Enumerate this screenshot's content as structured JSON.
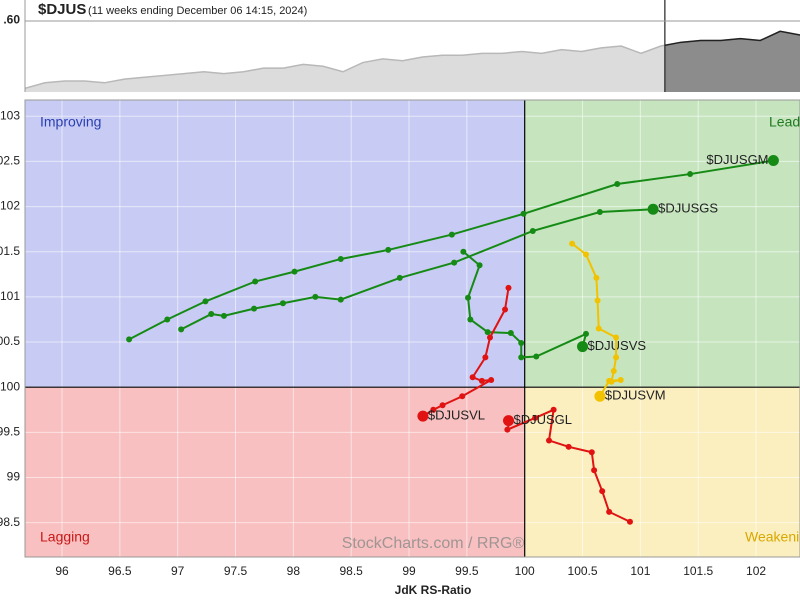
{
  "chart_data": [
    {
      "type": "rrg",
      "xlabel": "JdK RS-Ratio",
      "watermark": "StockCharts.com / RRG®",
      "xlim": [
        95.68,
        102.38
      ],
      "ylim": [
        98.12,
        103.18
      ],
      "xticks": [
        96,
        96.5,
        97,
        97.5,
        98,
        98.5,
        99,
        99.5,
        100,
        100.5,
        101,
        101.5,
        102
      ],
      "yticks": [
        98.5,
        99,
        99.5,
        100,
        100.5,
        101,
        101.5,
        102,
        102.5,
        103
      ],
      "center": [
        100,
        100
      ],
      "grid": true,
      "quadrants": [
        {
          "name": "Improving",
          "color": "#c8ccf4",
          "text_color": "#2b3fb0"
        },
        {
          "name": "Leading",
          "color": "#c6e5bf",
          "text_color": "#1f7a1f"
        },
        {
          "name": "Lagging",
          "color": "#f8c0c0",
          "text_color": "#c81818"
        },
        {
          "name": "Weakening",
          "color": "#fbefc0",
          "text_color": "#d8a800"
        }
      ],
      "series": [
        {
          "name": "$DJUSGM",
          "color": "#158a15",
          "x": [
            96.58,
            96.91,
            97.24,
            97.67,
            98.01,
            98.41,
            98.82,
            99.37,
            99.99,
            100.8,
            101.43,
            102.15
          ],
          "values": [
            100.53,
            100.75,
            100.95,
            101.17,
            101.28,
            101.42,
            101.52,
            101.69,
            101.92,
            102.25,
            102.36,
            102.51
          ]
        },
        {
          "name": "$DJUSGS",
          "color": "#158a15",
          "x": [
            97.03,
            97.29,
            97.4,
            97.66,
            97.91,
            98.19,
            98.41,
            98.92,
            99.39,
            100.07,
            100.65,
            101.11
          ],
          "values": [
            100.64,
            100.81,
            100.79,
            100.87,
            100.93,
            101.0,
            100.97,
            101.21,
            101.38,
            101.73,
            101.94,
            101.97
          ]
        },
        {
          "name": "$DJUSVS",
          "color": "#158a15",
          "x": [
            99.47,
            99.61,
            99.51,
            99.53,
            99.68,
            99.88,
            99.97,
            99.97,
            100.1,
            100.53,
            100.5
          ],
          "values": [
            101.5,
            101.35,
            100.99,
            100.75,
            100.61,
            100.6,
            100.49,
            100.33,
            100.34,
            100.59,
            100.45
          ]
        },
        {
          "name": "$DJUSVM",
          "color": "#f2c200",
          "x": [
            100.41,
            100.53,
            100.62,
            100.63,
            100.64,
            100.79,
            100.79,
            100.77,
            100.75,
            100.83,
            100.73,
            100.65
          ],
          "values": [
            101.59,
            101.47,
            101.21,
            100.96,
            100.65,
            100.55,
            100.33,
            100.18,
            100.06,
            100.08,
            100.07,
            99.9
          ]
        },
        {
          "name": "$DJUSVL",
          "color": "#e01212",
          "x": [
            99.86,
            99.83,
            99.7,
            99.66,
            99.55,
            99.63,
            99.71,
            99.46,
            99.29,
            99.21,
            99.12
          ],
          "values": [
            101.1,
            100.86,
            100.55,
            100.33,
            100.11,
            100.07,
            100.08,
            99.9,
            99.8,
            99.75,
            99.68
          ]
        },
        {
          "name": "$DJUSGL",
          "color": "#e01212",
          "x": [
            100.91,
            100.73,
            100.67,
            100.6,
            100.58,
            100.38,
            100.21,
            100.25,
            100.09,
            99.85,
            99.87,
            99.86
          ],
          "values": [
            98.51,
            98.62,
            98.85,
            99.08,
            99.28,
            99.34,
            99.41,
            99.75,
            99.66,
            99.53,
            99.61,
            99.63
          ]
        }
      ]
    },
    {
      "type": "area",
      "title": "$DJUS",
      "subtitle": "(11 weeks ending December 06 14:15, 2024)",
      "ylim": [
        0,
        100
      ],
      "yticks": [
        {
          "value": 78,
          "label": ".60"
        }
      ],
      "color": "#dcdcdc",
      "line_color": "#b8b8b8",
      "shade_color": "#8c8c8c",
      "shade_line_color": "#222222",
      "shade_start": 32.2,
      "values": [
        4,
        10,
        12,
        12,
        10,
        14,
        16,
        18,
        20,
        22,
        20,
        22,
        26,
        26,
        30,
        28,
        22,
        32,
        36,
        34,
        38,
        40,
        40,
        42,
        42,
        44,
        42,
        46,
        44,
        48,
        50,
        42,
        50,
        54,
        56,
        56,
        58,
        56,
        66,
        62
      ]
    }
  ]
}
